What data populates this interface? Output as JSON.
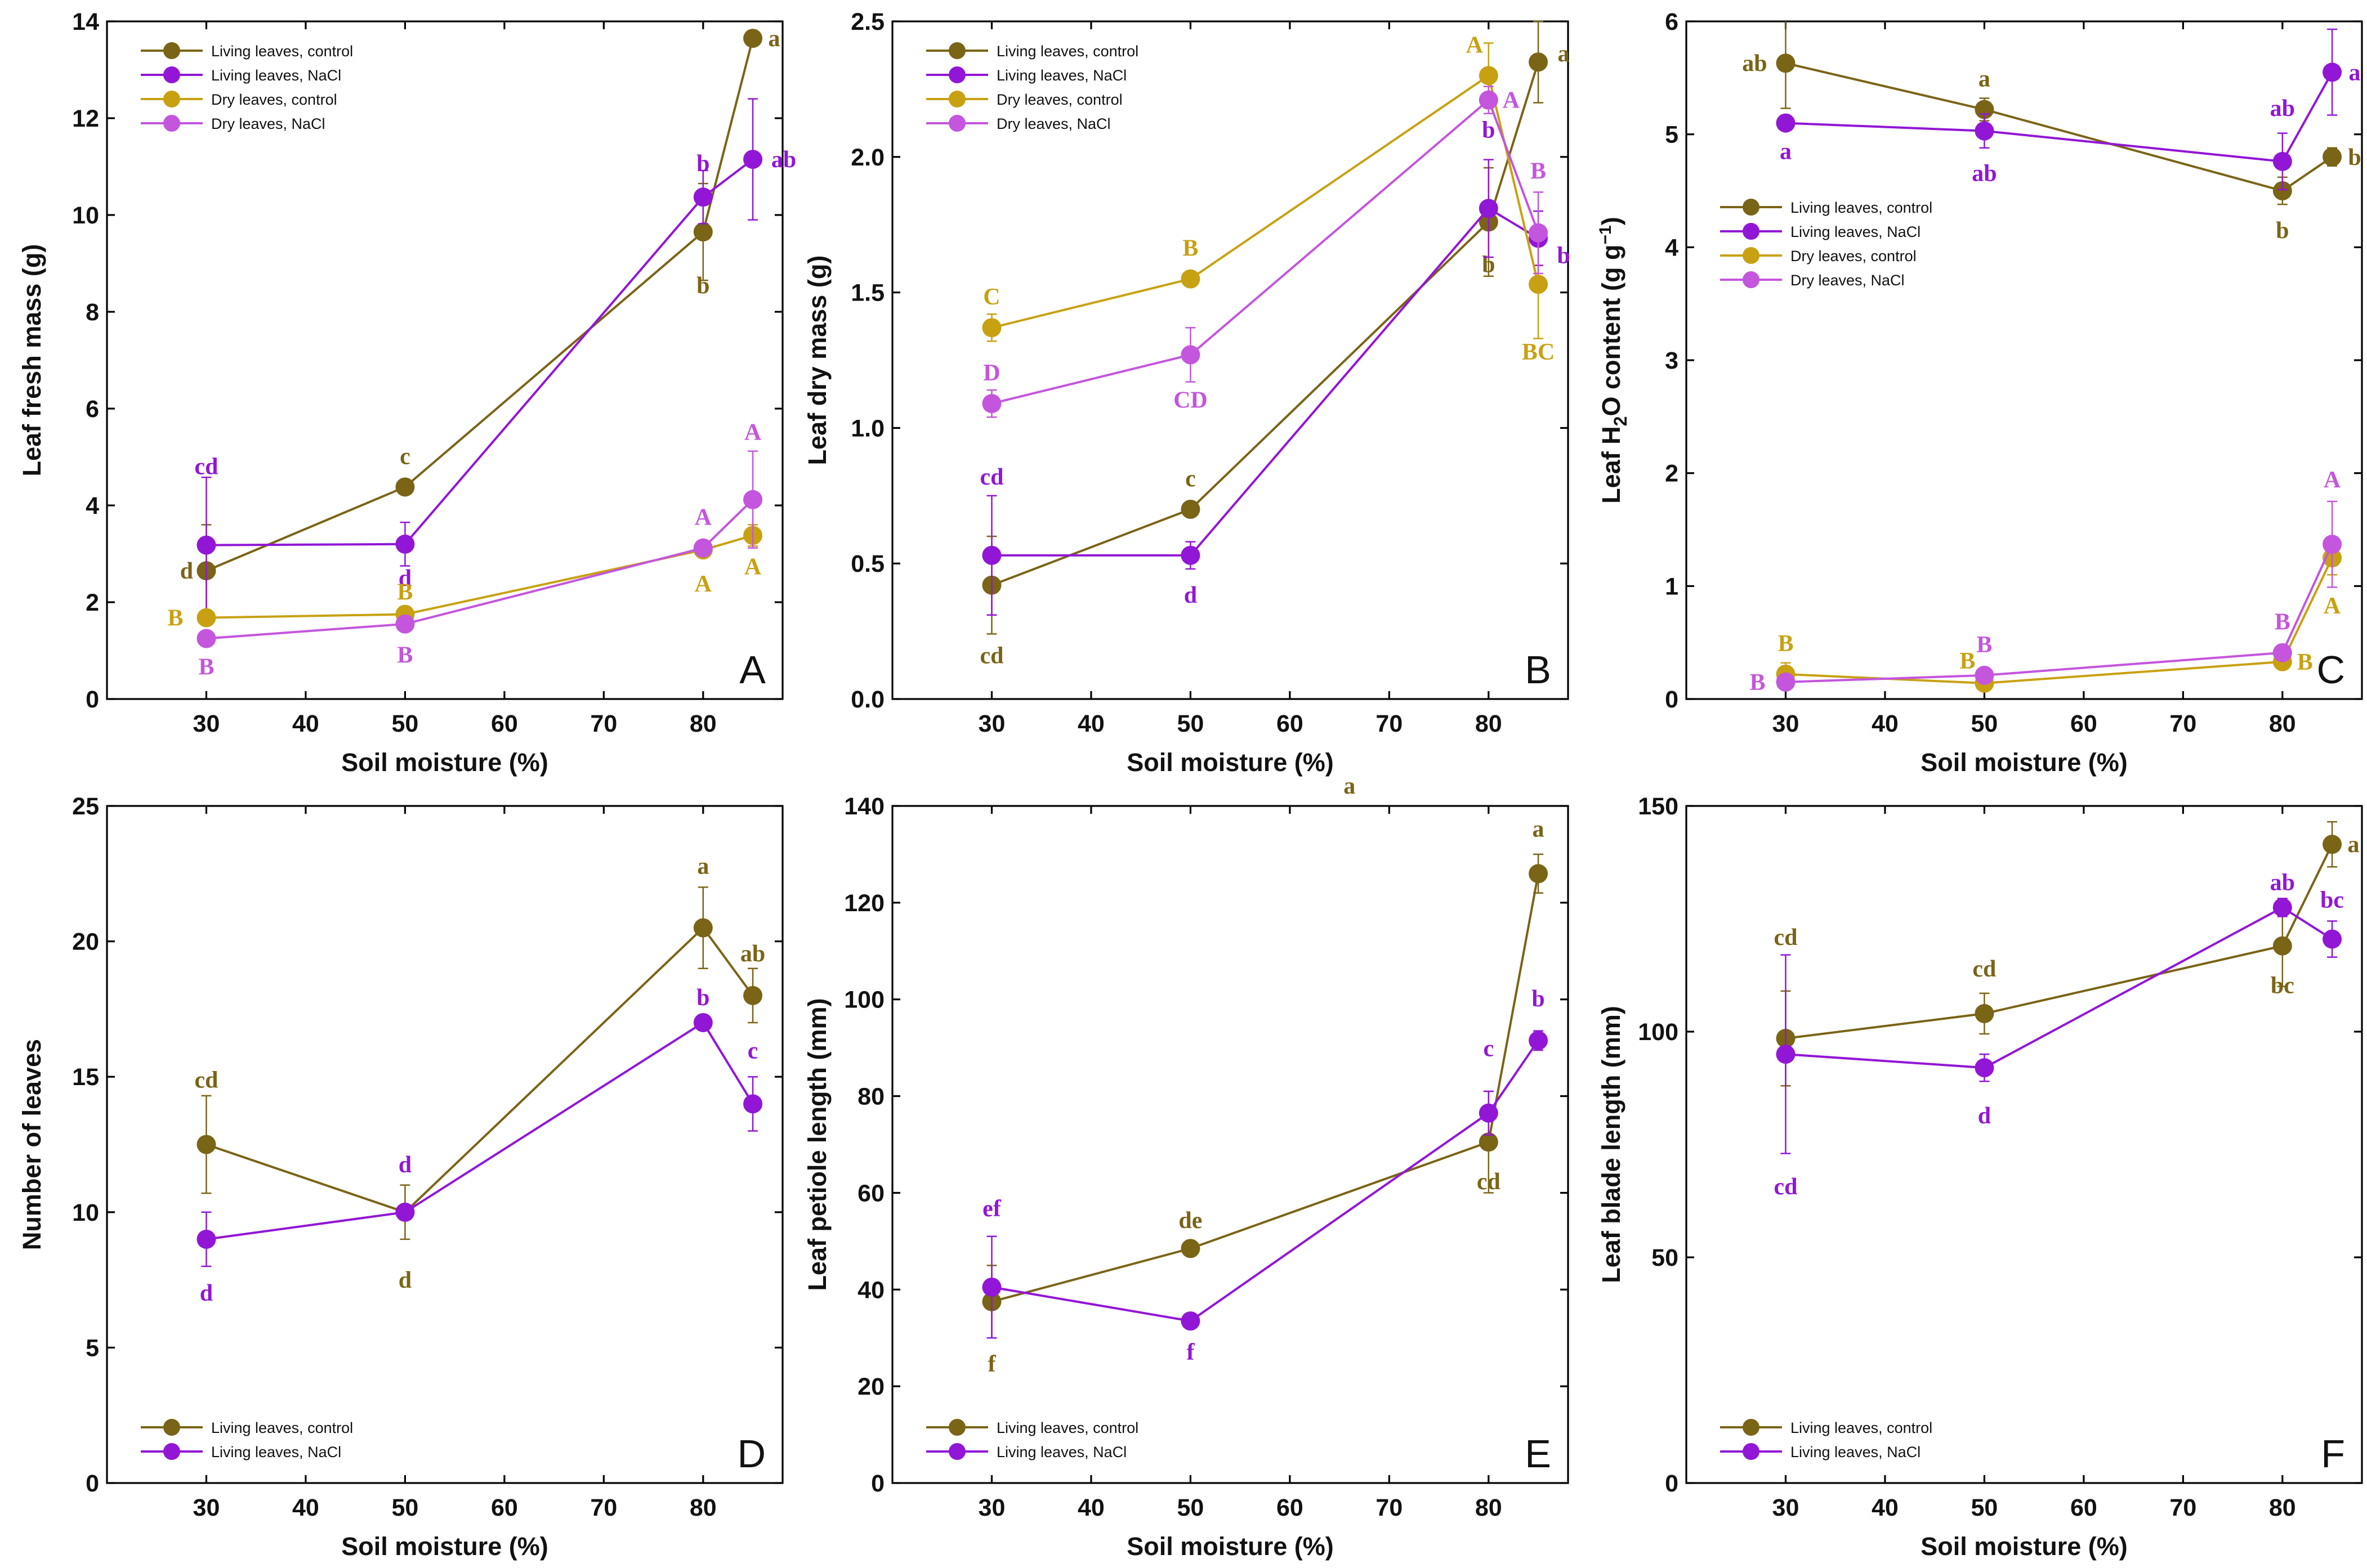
{
  "colors": {
    "living_control": "#7a6416",
    "living_nacl": "#9216d6",
    "dry_control": "#c8a112",
    "dry_nacl": "#c455dd"
  },
  "chart_data": [
    {
      "type": "line",
      "panel": "A",
      "title": "",
      "xlabel": "Soil moisture (%)",
      "ylabel": "Leaf fresh mass (g)",
      "xlim": [
        20,
        88
      ],
      "ylim": [
        0,
        14
      ],
      "xticks": [
        30,
        40,
        50,
        60,
        70,
        80
      ],
      "yticks": [
        0,
        2,
        4,
        6,
        8,
        10,
        12,
        14
      ],
      "legend_position": "top-left",
      "series": [
        {
          "name": "Living leaves, control",
          "color_key": "living_control",
          "x": [
            30,
            50,
            80,
            85
          ],
          "y": [
            2.65,
            4.38,
            9.65,
            13.65
          ],
          "err": [
            0.95,
            0.1,
            1.0,
            0.1
          ],
          "letters": [
            "d",
            "c",
            "b",
            "a"
          ]
        },
        {
          "name": "Living leaves, NaCl",
          "color_key": "living_nacl",
          "x": [
            30,
            50,
            80,
            85
          ],
          "y": [
            3.18,
            3.2,
            10.37,
            11.15
          ],
          "err": [
            1.4,
            0.45,
            0.55,
            1.25
          ],
          "letters": [
            "cd",
            "d",
            "b",
            "ab"
          ]
        },
        {
          "name": "Dry leaves, control",
          "color_key": "dry_control",
          "x": [
            30,
            50,
            80,
            85
          ],
          "y": [
            1.68,
            1.75,
            3.08,
            3.38
          ],
          "err": [
            0.08,
            0.1,
            0.15,
            0.22
          ],
          "letters": [
            "B",
            "B",
            "A",
            "A"
          ]
        },
        {
          "name": "Dry leaves, NaCl",
          "color_key": "dry_nacl",
          "x": [
            30,
            50,
            80,
            85
          ],
          "y": [
            1.25,
            1.55,
            3.12,
            4.12
          ],
          "err": [
            0.08,
            0.1,
            0.15,
            1.0
          ],
          "letters": [
            "B",
            "B",
            "A",
            "A"
          ]
        }
      ]
    },
    {
      "type": "line",
      "panel": "B",
      "title": "",
      "xlabel": "Soil moisture (%)",
      "ylabel": "Leaf dry mass (g)",
      "xlim": [
        20,
        88
      ],
      "ylim": [
        0,
        2.5
      ],
      "xticks": [
        30,
        40,
        50,
        60,
        70,
        80
      ],
      "yticks": [
        0,
        0.5,
        1.0,
        1.5,
        2.0,
        2.5
      ],
      "legend_position": "top-left",
      "series": [
        {
          "name": "Living leaves, control",
          "color_key": "living_control",
          "x": [
            30,
            50,
            80,
            85
          ],
          "y": [
            0.42,
            0.7,
            1.76,
            2.35
          ],
          "err": [
            0.18,
            0.02,
            0.2,
            0.15
          ],
          "letters": [
            "cd",
            "c",
            "b",
            "a"
          ]
        },
        {
          "name": "Living leaves, NaCl",
          "color_key": "living_nacl",
          "x": [
            30,
            50,
            80,
            85
          ],
          "y": [
            0.53,
            0.53,
            1.81,
            1.7
          ],
          "err": [
            0.22,
            0.05,
            0.18,
            0.1
          ],
          "letters": [
            "cd",
            "d",
            "b",
            "b"
          ]
        },
        {
          "name": "Dry leaves, control",
          "color_key": "dry_control",
          "x": [
            30,
            50,
            80,
            85
          ],
          "y": [
            1.37,
            1.55,
            2.3,
            1.53
          ],
          "err": [
            0.05,
            0.02,
            0.12,
            0.2
          ],
          "letters": [
            "C",
            "B",
            "A",
            "BC"
          ]
        },
        {
          "name": "Dry leaves, NaCl",
          "color_key": "dry_nacl",
          "x": [
            30,
            50,
            80,
            85
          ],
          "y": [
            1.09,
            1.27,
            2.21,
            1.72
          ],
          "err": [
            0.05,
            0.1,
            0.05,
            0.15
          ],
          "letters": [
            "D",
            "CD",
            "A",
            "B"
          ]
        }
      ]
    },
    {
      "type": "line",
      "panel": "C",
      "title": "",
      "xlabel": "Soil moisture (%)",
      "ylabel": "Leaf H",
      "ylabel_subscript": "2",
      "ylabel_middle": "O content (g g",
      "ylabel_superscript": "−1",
      "ylabel_end": ")",
      "xlim": [
        20,
        88
      ],
      "ylim": [
        0,
        6
      ],
      "xticks": [
        30,
        40,
        50,
        60,
        70,
        80
      ],
      "yticks": [
        0,
        1,
        2,
        3,
        4,
        5,
        6
      ],
      "legend_position": "center-left",
      "series": [
        {
          "name": "Living leaves, control",
          "color_key": "living_control",
          "x": [
            30,
            50,
            80,
            85
          ],
          "y": [
            5.63,
            5.22,
            4.5,
            4.8
          ],
          "err": [
            0.4,
            0.1,
            0.12,
            0.08
          ],
          "letters": [
            "ab",
            "a",
            "b",
            "b"
          ]
        },
        {
          "name": "Living leaves, NaCl",
          "color_key": "living_nacl",
          "x": [
            30,
            50,
            80,
            85
          ],
          "y": [
            5.1,
            5.03,
            4.76,
            5.55
          ],
          "err": [
            0.05,
            0.15,
            0.25,
            0.38
          ],
          "letters": [
            "a",
            "ab",
            "ab",
            "a"
          ]
        },
        {
          "name": "Dry leaves, control",
          "color_key": "dry_control",
          "x": [
            30,
            50,
            80,
            85
          ],
          "y": [
            0.22,
            0.14,
            0.33,
            1.25
          ],
          "err": [
            0.1,
            0.04,
            0.05,
            0.15
          ],
          "letters": [
            "B",
            "B",
            "B",
            "A"
          ]
        },
        {
          "name": "Dry leaves, NaCl",
          "color_key": "dry_nacl",
          "x": [
            30,
            50,
            80,
            85
          ],
          "y": [
            0.15,
            0.21,
            0.41,
            1.37
          ],
          "err": [
            0.04,
            0.05,
            0.05,
            0.38
          ],
          "letters": [
            "B",
            "B",
            "B",
            "A"
          ]
        }
      ]
    },
    {
      "type": "line",
      "panel": "D",
      "title": "",
      "xlabel": "Soil moisture (%)",
      "ylabel": "Number of leaves",
      "xlim": [
        20,
        88
      ],
      "ylim": [
        0,
        25
      ],
      "xticks": [
        30,
        40,
        50,
        60,
        70,
        80
      ],
      "yticks": [
        0,
        5,
        10,
        15,
        20,
        25
      ],
      "legend_position": "bottom-left",
      "series": [
        {
          "name": "Living leaves, control",
          "color_key": "living_control",
          "x": [
            30,
            50,
            80,
            85
          ],
          "y": [
            12.5,
            10.0,
            20.5,
            18.0
          ],
          "err": [
            1.8,
            1.0,
            1.5,
            1.0
          ],
          "letters": [
            "cd",
            "d",
            "a",
            "ab"
          ]
        },
        {
          "name": "Living leaves, NaCl",
          "color_key": "living_nacl",
          "x": [
            30,
            50,
            80,
            85
          ],
          "y": [
            9.0,
            10.0,
            17.0,
            14.0
          ],
          "err": [
            1.0,
            0.0,
            0.0,
            1.0
          ],
          "letters": [
            "d",
            "d",
            "b",
            "c"
          ]
        }
      ]
    },
    {
      "type": "line",
      "panel": "E",
      "title": "",
      "xlabel": "Soil moisture (%)",
      "ylabel": "Leaf petiole length (mm)",
      "xlim": [
        20,
        88
      ],
      "ylim": [
        0,
        140
      ],
      "xticks": [
        30,
        40,
        50,
        60,
        70,
        80
      ],
      "yticks": [
        0,
        20,
        40,
        60,
        80,
        100,
        120,
        140
      ],
      "legend_position": "bottom-left",
      "extra_letter": "a",
      "series": [
        {
          "name": "Living leaves, control",
          "color_key": "living_control",
          "x": [
            30,
            50,
            80,
            85
          ],
          "y": [
            37.5,
            48.5,
            70.5,
            126.0
          ],
          "err": [
            7.5,
            1.5,
            10.5,
            4.0
          ],
          "letters": [
            "f",
            "de",
            "cd",
            "a"
          ]
        },
        {
          "name": "Living leaves, NaCl",
          "color_key": "living_nacl",
          "x": [
            30,
            50,
            80,
            85
          ],
          "y": [
            40.5,
            33.5,
            76.5,
            91.5
          ],
          "err": [
            10.5,
            1.0,
            4.5,
            2.0
          ],
          "letters": [
            "ef",
            "f",
            "c",
            "b"
          ]
        }
      ]
    },
    {
      "type": "line",
      "panel": "F",
      "title": "",
      "xlabel": "Soil moisture (%)",
      "ylabel": "Leaf blade length (mm)",
      "xlim": [
        20,
        88
      ],
      "ylim": [
        0,
        150
      ],
      "xticks": [
        30,
        40,
        50,
        60,
        70,
        80
      ],
      "yticks": [
        0,
        50,
        100,
        150
      ],
      "legend_position": "bottom-left",
      "series": [
        {
          "name": "Living leaves, control",
          "color_key": "living_control",
          "x": [
            30,
            50,
            80,
            85
          ],
          "y": [
            98.5,
            104.0,
            119.0,
            141.5
          ],
          "err": [
            10.5,
            4.5,
            9.0,
            5.0
          ],
          "letters": [
            "cd",
            "cd",
            "bc",
            "a"
          ]
        },
        {
          "name": "Living leaves, NaCl",
          "color_key": "living_nacl",
          "x": [
            30,
            50,
            80,
            85
          ],
          "y": [
            95.0,
            92.0,
            127.5,
            120.5
          ],
          "err": [
            22.0,
            3.0,
            2.0,
            4.0
          ],
          "letters": [
            "cd",
            "d",
            "ab",
            "bc"
          ]
        }
      ]
    }
  ]
}
